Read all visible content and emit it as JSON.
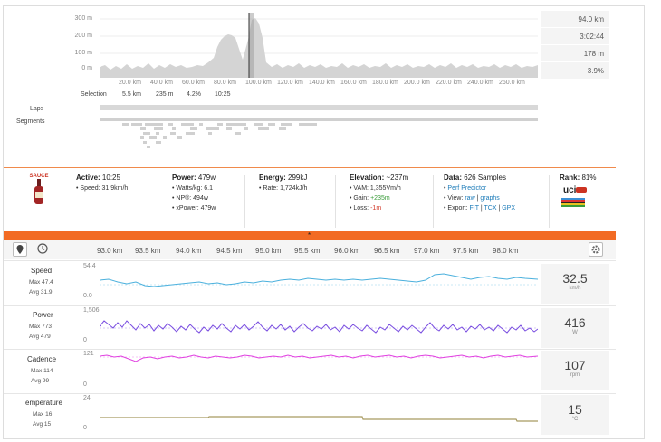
{
  "overview": {
    "y_ticks": [
      "300 m",
      "200 m",
      "100 m",
      ".0 m"
    ],
    "x_ticks": [
      "20.0 km",
      "40.0 km",
      "60.0 km",
      "80.0 km",
      "100.0 km",
      "120.0 km",
      "140.0 km",
      "160.0 km",
      "180.0 km",
      "200.0 km",
      "220.0 km",
      "240.0 km",
      "260.0 km"
    ],
    "selection_label": "Selection",
    "selection_values": [
      "5.5 km",
      "235 m",
      "4.2%",
      "10:25"
    ],
    "summary": [
      "94.0 km",
      "3:02:44",
      "178 m",
      "3.9%"
    ],
    "laps_label": "Laps",
    "segments_label": "Segments"
  },
  "stats": {
    "logo_text": "SAUCE",
    "active": {
      "title": "Active:",
      "value": "10:25",
      "speed": "• Speed: 31.9km/h"
    },
    "power": {
      "title": "Power:",
      "value": "479w",
      "watts_kg": "• Watts/kg: 6.1",
      "np": "• NP®: 494w",
      "xpower": "• xPower: 479w"
    },
    "energy": {
      "title": "Energy:",
      "value": "299kJ",
      "rate": "• Rate: 1,724kJ/h"
    },
    "elevation": {
      "title": "Elevation:",
      "value": "~237m",
      "vam": "• VAM: 1,355Vm/h",
      "gain_label": "• Gain:",
      "gain": "+235m",
      "loss_label": "• Loss:",
      "loss": "-1m"
    },
    "data": {
      "title": "Data:",
      "value": "626 Samples",
      "perf": "Perf Predictor",
      "view_label": "• View:",
      "raw": "raw",
      "graphs": "graphs",
      "export_label": "• Export:",
      "fit": "FIT",
      "tcx": "TCX",
      "gpx": "GPX"
    },
    "rank": {
      "title": "Rank:",
      "value": "81%",
      "badge": "uci"
    }
  },
  "timeline": {
    "x_ticks": [
      "93.0 km",
      "93.5 km",
      "94.0 km",
      "94.5 km",
      "95.0 km",
      "95.5 km",
      "96.0 km",
      "96.5 km",
      "97.0 km",
      "97.5 km",
      "98.0 km"
    ],
    "icons": [
      "map-pin-icon",
      "clock-icon",
      "gear-icon"
    ]
  },
  "streams": [
    {
      "name": "Speed",
      "max": "Max 47.4",
      "avg": "Avg 31.9",
      "top": "54.4",
      "bottom": "0.0",
      "value": "32.5",
      "unit": "km/h",
      "color": "#4ab0dd"
    },
    {
      "name": "Power",
      "max": "Max 773",
      "avg": "Avg 479",
      "top": "1,506",
      "bottom": "0",
      "value": "416",
      "unit": "W",
      "color": "#7a4ee0"
    },
    {
      "name": "Cadence",
      "max": "Max 114",
      "avg": "Avg 99",
      "top": "121",
      "bottom": "0",
      "value": "107",
      "unit": "rpm",
      "color": "#e040e0"
    },
    {
      "name": "Temperature",
      "max": "Max 16",
      "avg": "Avg 15",
      "top": "24",
      "bottom": "0",
      "value": "15",
      "unit": "°C",
      "color": "#a89a60"
    }
  ]
}
